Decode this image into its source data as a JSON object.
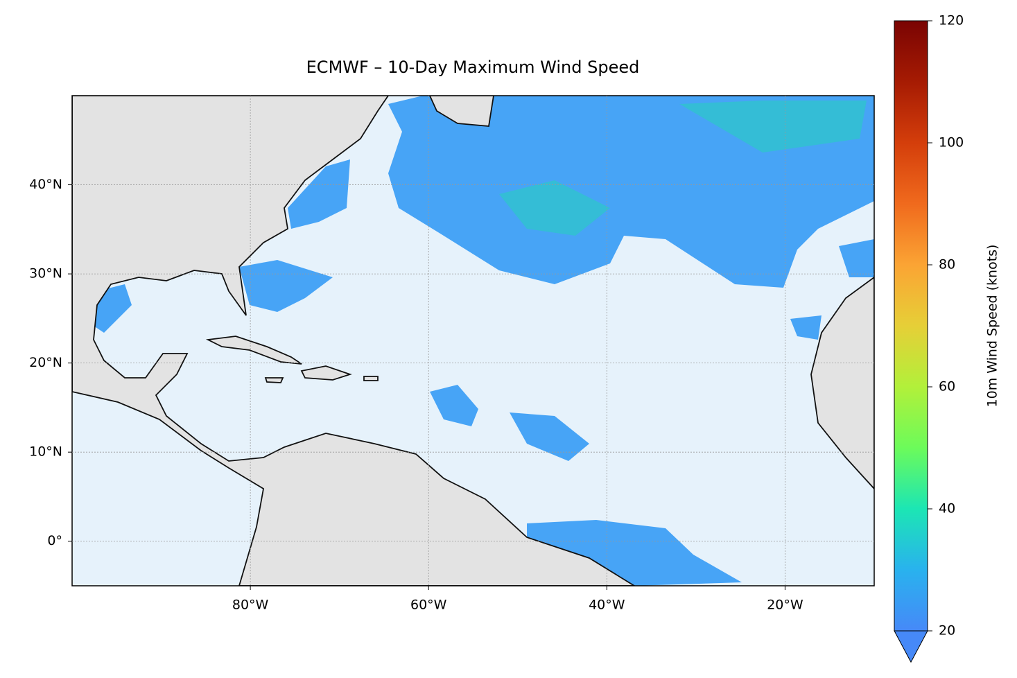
{
  "map": {
    "title": "ECMWF – 10-Day Maximum Wind Speed",
    "lonlim": [
      -100,
      -10
    ],
    "latlim": [
      -5,
      50
    ],
    "lonticks": [
      {
        "value": -80,
        "label": "80°W"
      },
      {
        "value": -60,
        "label": "60°W"
      },
      {
        "value": -40,
        "label": "40°W"
      },
      {
        "value": -20,
        "label": "20°W"
      }
    ],
    "latticks": [
      {
        "value": 0,
        "label": "0°"
      },
      {
        "value": 10,
        "label": "10°N"
      },
      {
        "value": 20,
        "label": "20°N"
      },
      {
        "value": 30,
        "label": "30°N"
      },
      {
        "value": 40,
        "label": "40°N"
      }
    ],
    "colorbar": {
      "label": "10m Wind Speed (knots)",
      "lim": [
        20,
        120
      ],
      "ticks": [
        20,
        40,
        60,
        80,
        100,
        120
      ],
      "extend": "min"
    }
  }
}
